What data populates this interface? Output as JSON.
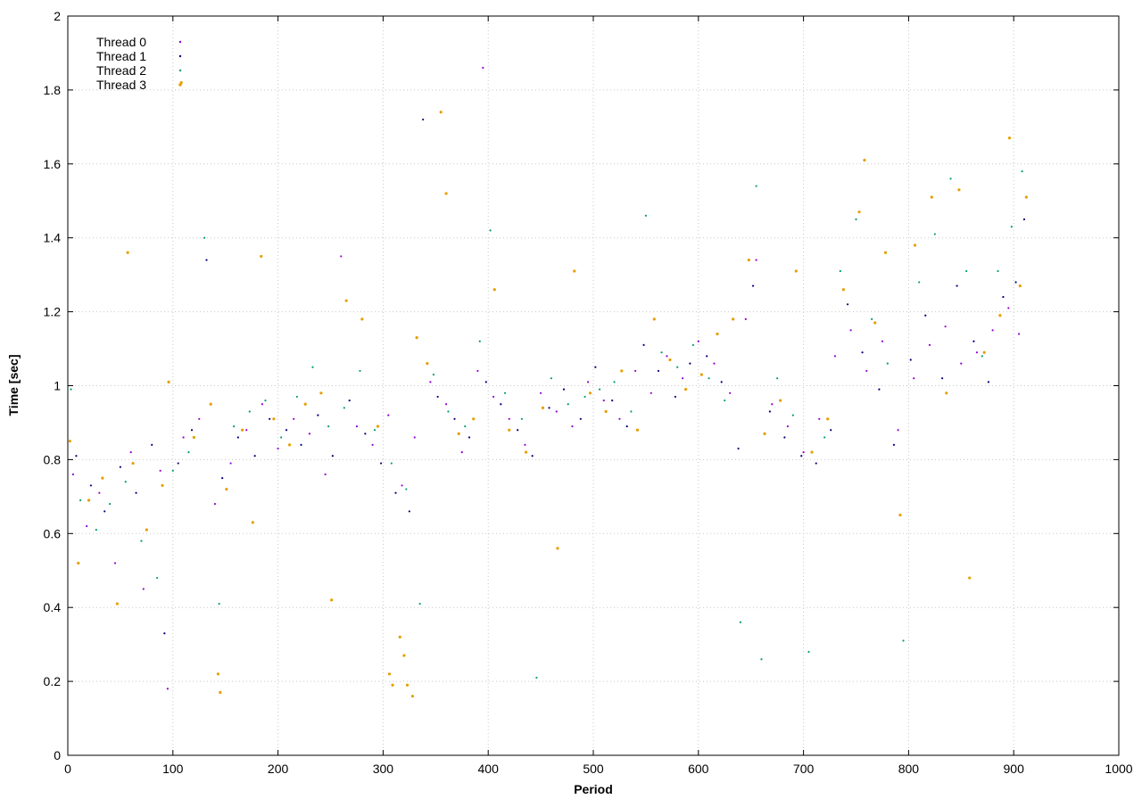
{
  "chart_data": {
    "type": "scatter",
    "title": "",
    "xlabel": "Period",
    "ylabel": "Time [sec]",
    "xlim": [
      0,
      1000
    ],
    "ylim": [
      0,
      2
    ],
    "x_ticks": [
      0,
      100,
      200,
      300,
      400,
      500,
      600,
      700,
      800,
      900,
      1000
    ],
    "y_ticks": [
      0,
      0.2,
      0.4,
      0.6,
      0.8,
      1,
      1.2,
      1.4,
      1.6,
      1.8,
      2
    ],
    "x_tick_labels": [
      "0",
      "100",
      "200",
      "300",
      "400",
      "500",
      "600",
      "700",
      "800",
      "900",
      "1000"
    ],
    "y_tick_labels": [
      "0",
      "0.2",
      "0.4",
      "0.6",
      "0.8",
      "1",
      "1.2",
      "1.4",
      "1.6",
      "1.8",
      "2"
    ],
    "grid": true,
    "legend_position": "top-left",
    "series": [
      {
        "name": "Thread 0",
        "color": "#9400d3",
        "points": [
          [
            5,
            0.76
          ],
          [
            18,
            0.62
          ],
          [
            30,
            0.71
          ],
          [
            45,
            0.52
          ],
          [
            60,
            0.82
          ],
          [
            72,
            0.45
          ],
          [
            88,
            0.77
          ],
          [
            95,
            0.18
          ],
          [
            110,
            0.86
          ],
          [
            125,
            0.91
          ],
          [
            140,
            0.68
          ],
          [
            155,
            0.79
          ],
          [
            170,
            0.88
          ],
          [
            185,
            0.95
          ],
          [
            200,
            0.83
          ],
          [
            215,
            0.91
          ],
          [
            230,
            0.87
          ],
          [
            245,
            0.76
          ],
          [
            260,
            1.35
          ],
          [
            275,
            0.89
          ],
          [
            290,
            0.84
          ],
          [
            305,
            0.92
          ],
          [
            318,
            0.73
          ],
          [
            330,
            0.86
          ],
          [
            345,
            1.01
          ],
          [
            360,
            0.95
          ],
          [
            375,
            0.82
          ],
          [
            390,
            1.04
          ],
          [
            395,
            1.86
          ],
          [
            405,
            0.97
          ],
          [
            420,
            0.91
          ],
          [
            435,
            0.84
          ],
          [
            450,
            0.98
          ],
          [
            465,
            0.93
          ],
          [
            480,
            0.89
          ],
          [
            495,
            1.01
          ],
          [
            510,
            0.96
          ],
          [
            525,
            0.91
          ],
          [
            540,
            1.04
          ],
          [
            555,
            0.98
          ],
          [
            570,
            1.08
          ],
          [
            585,
            1.02
          ],
          [
            600,
            1.12
          ],
          [
            615,
            1.06
          ],
          [
            630,
            0.98
          ],
          [
            645,
            1.18
          ],
          [
            655,
            1.34
          ],
          [
            670,
            0.95
          ],
          [
            685,
            0.89
          ],
          [
            700,
            0.82
          ],
          [
            715,
            0.91
          ],
          [
            730,
            1.08
          ],
          [
            745,
            1.15
          ],
          [
            760,
            1.04
          ],
          [
            775,
            1.12
          ],
          [
            790,
            0.88
          ],
          [
            805,
            1.02
          ],
          [
            820,
            1.11
          ],
          [
            835,
            1.16
          ],
          [
            850,
            1.06
          ],
          [
            865,
            1.09
          ],
          [
            880,
            1.15
          ],
          [
            895,
            1.21
          ],
          [
            905,
            1.14
          ]
        ]
      },
      {
        "name": "Thread 1",
        "color": "#00007f",
        "points": [
          [
            8,
            0.81
          ],
          [
            22,
            0.73
          ],
          [
            35,
            0.66
          ],
          [
            50,
            0.78
          ],
          [
            65,
            0.71
          ],
          [
            80,
            0.84
          ],
          [
            92,
            0.33
          ],
          [
            105,
            0.79
          ],
          [
            118,
            0.88
          ],
          [
            132,
            1.34
          ],
          [
            147,
            0.75
          ],
          [
            162,
            0.86
          ],
          [
            178,
            0.81
          ],
          [
            192,
            0.91
          ],
          [
            208,
            0.88
          ],
          [
            222,
            0.84
          ],
          [
            238,
            0.92
          ],
          [
            252,
            0.81
          ],
          [
            268,
            0.96
          ],
          [
            283,
            0.87
          ],
          [
            298,
            0.79
          ],
          [
            312,
            0.71
          ],
          [
            325,
            0.66
          ],
          [
            338,
            1.72
          ],
          [
            352,
            0.97
          ],
          [
            368,
            0.91
          ],
          [
            382,
            0.86
          ],
          [
            398,
            1.01
          ],
          [
            412,
            0.95
          ],
          [
            428,
            0.88
          ],
          [
            442,
            0.81
          ],
          [
            458,
            0.94
          ],
          [
            472,
            0.99
          ],
          [
            488,
            0.91
          ],
          [
            502,
            1.05
          ],
          [
            518,
            0.96
          ],
          [
            532,
            0.89
          ],
          [
            548,
            1.11
          ],
          [
            562,
            1.04
          ],
          [
            578,
            0.97
          ],
          [
            592,
            1.06
          ],
          [
            608,
            1.08
          ],
          [
            622,
            1.01
          ],
          [
            638,
            0.83
          ],
          [
            652,
            1.27
          ],
          [
            668,
            0.93
          ],
          [
            682,
            0.86
          ],
          [
            698,
            0.81
          ],
          [
            712,
            0.79
          ],
          [
            726,
            0.88
          ],
          [
            742,
            1.22
          ],
          [
            756,
            1.09
          ],
          [
            772,
            0.99
          ],
          [
            786,
            0.84
          ],
          [
            802,
            1.07
          ],
          [
            816,
            1.19
          ],
          [
            832,
            1.02
          ],
          [
            846,
            1.27
          ],
          [
            862,
            1.12
          ],
          [
            876,
            1.01
          ],
          [
            890,
            1.24
          ],
          [
            902,
            1.28
          ],
          [
            910,
            1.45
          ]
        ]
      },
      {
        "name": "Thread 2",
        "color": "#009e73",
        "points": [
          [
            3,
            0.99
          ],
          [
            12,
            0.69
          ],
          [
            27,
            0.61
          ],
          [
            40,
            0.68
          ],
          [
            55,
            0.74
          ],
          [
            70,
            0.58
          ],
          [
            85,
            0.48
          ],
          [
            100,
            0.77
          ],
          [
            115,
            0.82
          ],
          [
            130,
            1.4
          ],
          [
            144,
            0.41
          ],
          [
            158,
            0.89
          ],
          [
            173,
            0.93
          ],
          [
            188,
            0.96
          ],
          [
            203,
            0.86
          ],
          [
            218,
            0.97
          ],
          [
            233,
            1.05
          ],
          [
            248,
            0.89
          ],
          [
            263,
            0.94
          ],
          [
            278,
            1.04
          ],
          [
            292,
            0.88
          ],
          [
            308,
            0.79
          ],
          [
            322,
            0.72
          ],
          [
            335,
            0.41
          ],
          [
            348,
            1.03
          ],
          [
            362,
            0.93
          ],
          [
            378,
            0.89
          ],
          [
            392,
            1.12
          ],
          [
            402,
            1.42
          ],
          [
            416,
            0.98
          ],
          [
            432,
            0.91
          ],
          [
            446,
            0.21
          ],
          [
            460,
            1.02
          ],
          [
            476,
            0.95
          ],
          [
            492,
            0.97
          ],
          [
            506,
            0.99
          ],
          [
            520,
            1.01
          ],
          [
            536,
            0.93
          ],
          [
            550,
            1.46
          ],
          [
            565,
            1.09
          ],
          [
            580,
            1.05
          ],
          [
            595,
            1.11
          ],
          [
            610,
            1.02
          ],
          [
            625,
            0.96
          ],
          [
            640,
            0.36
          ],
          [
            655,
            1.54
          ],
          [
            660,
            0.26
          ],
          [
            675,
            1.02
          ],
          [
            690,
            0.92
          ],
          [
            705,
            0.28
          ],
          [
            720,
            0.86
          ],
          [
            735,
            1.31
          ],
          [
            750,
            1.45
          ],
          [
            765,
            1.18
          ],
          [
            780,
            1.06
          ],
          [
            795,
            0.31
          ],
          [
            810,
            1.28
          ],
          [
            825,
            1.41
          ],
          [
            840,
            1.56
          ],
          [
            855,
            1.31
          ],
          [
            870,
            1.08
          ],
          [
            885,
            1.31
          ],
          [
            898,
            1.43
          ],
          [
            908,
            1.58
          ]
        ]
      },
      {
        "name": "Thread 3",
        "color": "#e69f00",
        "points": [
          [
            2,
            0.85
          ],
          [
            10,
            0.52
          ],
          [
            20,
            0.69
          ],
          [
            33,
            0.75
          ],
          [
            47,
            0.41
          ],
          [
            57,
            1.36
          ],
          [
            62,
            0.79
          ],
          [
            75,
            0.61
          ],
          [
            90,
            0.73
          ],
          [
            96,
            1.01
          ],
          [
            108,
            1.82
          ],
          [
            120,
            0.86
          ],
          [
            136,
            0.95
          ],
          [
            143,
            0.22
          ],
          [
            145,
            0.17
          ],
          [
            151,
            0.72
          ],
          [
            166,
            0.88
          ],
          [
            176,
            0.63
          ],
          [
            184,
            1.35
          ],
          [
            196,
            0.91
          ],
          [
            211,
            0.84
          ],
          [
            226,
            0.95
          ],
          [
            241,
            0.98
          ],
          [
            251,
            0.42
          ],
          [
            265,
            1.23
          ],
          [
            280,
            1.18
          ],
          [
            295,
            0.89
          ],
          [
            306,
            0.22
          ],
          [
            309,
            0.19
          ],
          [
            316,
            0.32
          ],
          [
            320,
            0.27
          ],
          [
            323,
            0.19
          ],
          [
            328,
            0.16
          ],
          [
            332,
            1.13
          ],
          [
            342,
            1.06
          ],
          [
            355,
            1.74
          ],
          [
            360,
            1.52
          ],
          [
            372,
            0.87
          ],
          [
            386,
            0.91
          ],
          [
            406,
            1.26
          ],
          [
            420,
            0.88
          ],
          [
            436,
            0.82
          ],
          [
            452,
            0.94
          ],
          [
            466,
            0.56
          ],
          [
            482,
            1.31
          ],
          [
            497,
            0.98
          ],
          [
            512,
            0.93
          ],
          [
            527,
            1.04
          ],
          [
            542,
            0.88
          ],
          [
            558,
            1.18
          ],
          [
            573,
            1.07
          ],
          [
            588,
            0.99
          ],
          [
            603,
            1.03
          ],
          [
            618,
            1.14
          ],
          [
            633,
            1.18
          ],
          [
            648,
            1.34
          ],
          [
            663,
            0.87
          ],
          [
            678,
            0.96
          ],
          [
            693,
            1.31
          ],
          [
            708,
            0.82
          ],
          [
            723,
            0.91
          ],
          [
            738,
            1.26
          ],
          [
            753,
            1.47
          ],
          [
            758,
            1.61
          ],
          [
            768,
            1.17
          ],
          [
            778,
            1.36
          ],
          [
            792,
            0.65
          ],
          [
            806,
            1.38
          ],
          [
            822,
            1.51
          ],
          [
            836,
            0.98
          ],
          [
            848,
            1.53
          ],
          [
            858,
            0.48
          ],
          [
            872,
            1.09
          ],
          [
            887,
            1.19
          ],
          [
            896,
            1.67
          ],
          [
            906,
            1.27
          ],
          [
            912,
            1.51
          ]
        ]
      }
    ]
  }
}
